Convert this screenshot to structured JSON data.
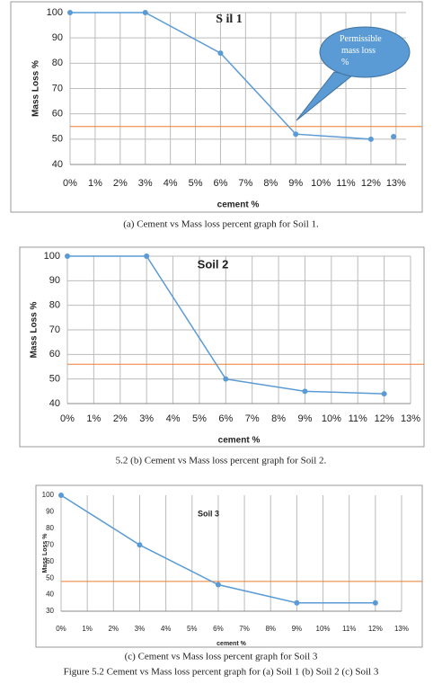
{
  "chart_data": [
    {
      "type": "line",
      "title": "S il 1",
      "xlabel": "cement %",
      "ylabel": "Mass Loss %",
      "xlim": [
        0,
        13.4
      ],
      "ylim": [
        40,
        100
      ],
      "xticks": [
        {
          "value": 0,
          "label": "0%"
        },
        {
          "value": 1,
          "label": "1%"
        },
        {
          "value": 2,
          "label": "2%"
        },
        {
          "value": 3,
          "label": "3%"
        },
        {
          "value": 4,
          "label": "4%"
        },
        {
          "value": 5,
          "label": "5%"
        },
        {
          "value": 6,
          "label": "6%"
        },
        {
          "value": 7,
          "label": "7%"
        },
        {
          "value": 8,
          "label": "8%"
        },
        {
          "value": 9,
          "label": "9%"
        },
        {
          "value": 10,
          "label": "10%"
        },
        {
          "value": 11,
          "label": "11%"
        },
        {
          "value": 12,
          "label": "12%"
        },
        {
          "value": 13,
          "label": "13%"
        }
      ],
      "yticks": [
        40,
        50,
        60,
        70,
        80,
        90,
        100
      ],
      "grid": "both",
      "series": [
        {
          "color": "#5b9bd5",
          "x": [
            0,
            3,
            6,
            9,
            12
          ],
          "values": [
            100,
            100,
            84,
            52,
            50
          ]
        },
        {
          "color": "#5b9bd5",
          "x": [
            12.9
          ],
          "values": [
            51
          ],
          "marker_only": true
        }
      ],
      "threshold": {
        "value": 55,
        "color": "#ed7d31"
      },
      "annotation": "Permissible mass loss %"
    },
    {
      "type": "line",
      "title": "Soil 2",
      "xlabel": "cement %",
      "ylabel": "Mass Loss %",
      "xlim": [
        0,
        13
      ],
      "ylim": [
        40,
        100
      ],
      "xticks": [
        {
          "value": 0,
          "label": "0%"
        },
        {
          "value": 1,
          "label": "1%"
        },
        {
          "value": 2,
          "label": "2%"
        },
        {
          "value": 3,
          "label": "3%"
        },
        {
          "value": 4,
          "label": "4%"
        },
        {
          "value": 5,
          "label": "5%"
        },
        {
          "value": 6,
          "label": "6%"
        },
        {
          "value": 7,
          "label": "7%"
        },
        {
          "value": 8,
          "label": "8%"
        },
        {
          "value": 9,
          "label": "9%"
        },
        {
          "value": 10,
          "label": "10%"
        },
        {
          "value": 11,
          "label": "11%"
        },
        {
          "value": 12,
          "label": "12%"
        },
        {
          "value": 13,
          "label": "13%"
        }
      ],
      "yticks": [
        40,
        50,
        60,
        70,
        80,
        90,
        100
      ],
      "grid": "both",
      "series": [
        {
          "color": "#5b9bd5",
          "x": [
            0,
            3,
            6,
            9,
            12
          ],
          "values": [
            100,
            100,
            50,
            45,
            44
          ]
        }
      ],
      "threshold": {
        "value": 56,
        "color": "#ed7d31"
      }
    },
    {
      "type": "line",
      "title": "Soil 3",
      "xlabel": "cement %",
      "ylabel": "Mass Loss %",
      "xlim": [
        0,
        13
      ],
      "ylim": [
        30,
        100
      ],
      "xticks": [
        {
          "value": 0,
          "label": "0%"
        },
        {
          "value": 1,
          "label": "1%"
        },
        {
          "value": 2,
          "label": "2%"
        },
        {
          "value": 3,
          "label": "3%"
        },
        {
          "value": 4,
          "label": "4%"
        },
        {
          "value": 5,
          "label": "5%"
        },
        {
          "value": 6,
          "label": "6%"
        },
        {
          "value": 7,
          "label": "7%"
        },
        {
          "value": 8,
          "label": "8%"
        },
        {
          "value": 9,
          "label": "9%"
        },
        {
          "value": 10,
          "label": "10%"
        },
        {
          "value": 11,
          "label": "11%"
        },
        {
          "value": 12,
          "label": "12%"
        },
        {
          "value": 13,
          "label": "13%"
        }
      ],
      "yticks": [
        30,
        40,
        50,
        60,
        70,
        80,
        90,
        100
      ],
      "grid": "x",
      "series": [
        {
          "color": "#5b9bd5",
          "x": [
            0,
            3,
            6,
            9,
            12
          ],
          "values": [
            100,
            70,
            46,
            35,
            35
          ]
        }
      ],
      "threshold": {
        "value": 48,
        "color": "#ed7d31"
      }
    }
  ],
  "captions": [
    "(a)  Cement vs Mass loss percent graph for Soil 1.",
    "5.2  (b) Cement vs Mass loss percent graph for Soil 2.",
    "(c) Cement vs Mass loss percent graph for Soil 3"
  ],
  "figure_caption": "Figure 5.2 Cement vs Mass loss percent graph for (a)  Soil 1 (b) Soil 2 (c) Soil 3"
}
